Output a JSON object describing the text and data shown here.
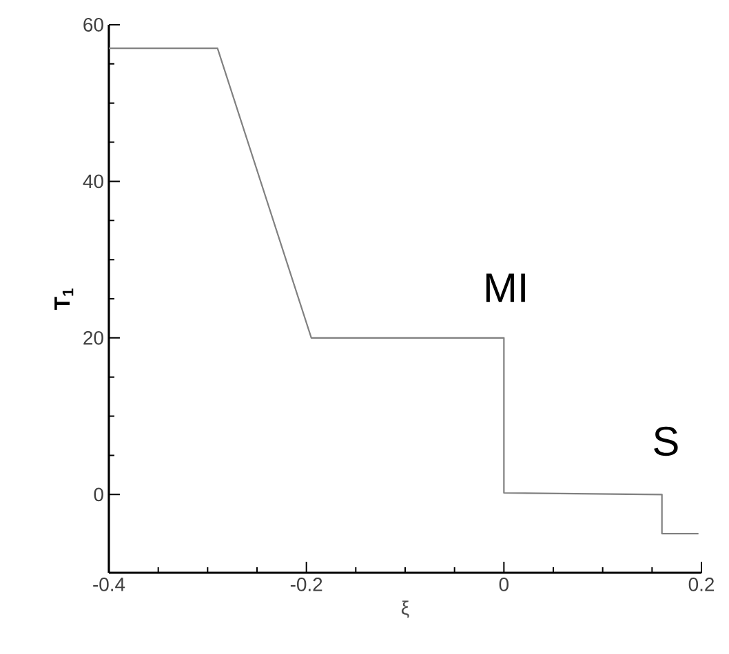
{
  "chart_data": {
    "type": "line",
    "xlabel": "ξ",
    "ylabel": "T$_{1}$",
    "x": [
      -0.4,
      -0.29,
      -0.195,
      0,
      0,
      0.16,
      0.16,
      0.197
    ],
    "values": [
      57,
      57,
      20,
      20,
      0.2,
      0,
      -5,
      -5
    ],
    "color": "#808080",
    "xlim": [
      -0.4,
      0.2
    ],
    "ylim": [
      -10,
      60
    ],
    "xticks": [
      -0.4,
      -0.2,
      0,
      0.2
    ],
    "yticks": [
      0,
      20,
      40,
      60
    ],
    "grid": false,
    "marker": "none",
    "line_style": "solid",
    "annotations": [
      "MI",
      "S"
    ]
  }
}
